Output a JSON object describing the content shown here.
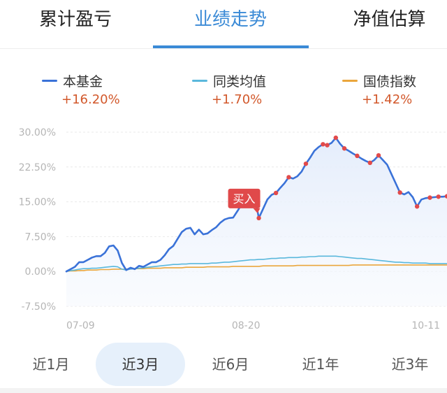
{
  "tabs": [
    {
      "label": "累计盈亏"
    },
    {
      "label": "业绩走势"
    },
    {
      "label": "净值估算"
    }
  ],
  "active_tab": 1,
  "legend": [
    {
      "name": "本基金",
      "value": "+16.20%",
      "color": "#3a72d8"
    },
    {
      "name": "同类均值",
      "value": "+1.70%",
      "color": "#5ab8dc"
    },
    {
      "name": "国债指数",
      "value": "+1.42%",
      "color": "#eaa63c"
    }
  ],
  "chart_data": {
    "type": "line",
    "y_ticks": [
      "30.00%",
      "22.50%",
      "15.00%",
      "7.50%",
      "0.00%",
      "-7.50%"
    ],
    "y_tick_values": [
      30,
      22.5,
      15,
      7.5,
      0,
      -7.5
    ],
    "ylim": [
      -7.5,
      30
    ],
    "x_tick_labels": [
      "07-09",
      "08-20",
      "10-11"
    ],
    "x_tick_positions": [
      0,
      42,
      84
    ],
    "x_range": [
      0,
      89
    ],
    "annotation": {
      "label": "买入",
      "at_index": 45
    },
    "marker_indices": [
      45,
      49,
      52,
      56,
      60,
      61,
      63,
      65,
      68,
      71,
      73,
      78,
      82,
      85,
      87,
      89
    ],
    "series": [
      {
        "name": "本基金",
        "color": "#3a72d8",
        "values": [
          0.0,
          0.5,
          1.0,
          2.0,
          2.0,
          2.5,
          3.0,
          3.3,
          3.3,
          4.0,
          5.4,
          5.6,
          4.5,
          1.8,
          0.3,
          0.8,
          0.5,
          1.2,
          1.0,
          1.5,
          2.0,
          2.0,
          2.5,
          3.5,
          4.8,
          5.5,
          7.0,
          8.5,
          9.2,
          9.4,
          8.0,
          9.0,
          8.0,
          8.2,
          8.9,
          9.5,
          10.5,
          11.2,
          11.5,
          11.6,
          13.0,
          14.5,
          15.8,
          16.5,
          16.3,
          11.5,
          13.5,
          15.5,
          16.5,
          16.9,
          18.0,
          19.0,
          20.3,
          20.0,
          20.5,
          21.5,
          23.2,
          24.5,
          26.0,
          26.8,
          27.4,
          27.2,
          27.7,
          28.8,
          27.5,
          26.5,
          26.0,
          25.4,
          24.9,
          24.3,
          23.8,
          23.4,
          24.0,
          25.0,
          24.0,
          23.0,
          21.0,
          19.0,
          17.0,
          16.6,
          17.1,
          16.0,
          14.0,
          15.5,
          15.8,
          15.9,
          16.0,
          16.1,
          16.1,
          16.2
        ],
        "colored_line": true
      },
      {
        "name": "同类均值",
        "color": "#5ab8dc",
        "values": [
          0.0,
          0.2,
          0.3,
          0.5,
          0.6,
          0.6,
          0.7,
          0.7,
          0.8,
          0.9,
          1.0,
          1.1,
          1.0,
          0.5,
          0.3,
          0.5,
          0.6,
          0.7,
          0.8,
          0.9,
          1.0,
          1.1,
          1.2,
          1.3,
          1.4,
          1.5,
          1.5,
          1.6,
          1.6,
          1.7,
          1.7,
          1.7,
          1.7,
          1.7,
          1.8,
          1.8,
          1.9,
          2.0,
          2.0,
          2.1,
          2.2,
          2.3,
          2.4,
          2.5,
          2.5,
          2.6,
          2.6,
          2.7,
          2.8,
          2.8,
          2.9,
          2.9,
          3.0,
          3.0,
          3.0,
          3.1,
          3.1,
          3.2,
          3.2,
          3.3,
          3.3,
          3.3,
          3.3,
          3.3,
          3.2,
          3.1,
          3.0,
          2.9,
          2.8,
          2.8,
          2.7,
          2.6,
          2.5,
          2.4,
          2.3,
          2.2,
          2.1,
          2.0,
          2.0,
          1.9,
          1.9,
          1.8,
          1.8,
          1.8,
          1.8,
          1.7,
          1.7,
          1.7,
          1.7,
          1.7
        ]
      },
      {
        "name": "国债指数",
        "color": "#eaa63c",
        "values": [
          0.0,
          0.1,
          0.1,
          0.2,
          0.2,
          0.3,
          0.3,
          0.3,
          0.4,
          0.4,
          0.4,
          0.5,
          0.5,
          0.5,
          0.5,
          0.6,
          0.6,
          0.6,
          0.6,
          0.7,
          0.7,
          0.7,
          0.7,
          0.8,
          0.8,
          0.8,
          0.8,
          0.8,
          0.9,
          0.9,
          0.9,
          0.9,
          0.9,
          1.0,
          1.0,
          1.0,
          1.0,
          1.0,
          1.0,
          1.1,
          1.1,
          1.1,
          1.1,
          1.1,
          1.1,
          1.1,
          1.2,
          1.2,
          1.2,
          1.2,
          1.2,
          1.2,
          1.2,
          1.2,
          1.3,
          1.3,
          1.3,
          1.3,
          1.3,
          1.3,
          1.3,
          1.3,
          1.3,
          1.3,
          1.3,
          1.3,
          1.3,
          1.4,
          1.4,
          1.4,
          1.4,
          1.4,
          1.4,
          1.4,
          1.4,
          1.4,
          1.4,
          1.4,
          1.4,
          1.4,
          1.4,
          1.4,
          1.4,
          1.4,
          1.4,
          1.4,
          1.4,
          1.4,
          1.4,
          1.4
        ]
      }
    ],
    "grid": true,
    "area_fill_color": "#eef3fc",
    "marker_color": "#e24a4a"
  },
  "ranges": [
    {
      "label": "近1月"
    },
    {
      "label": "近3月"
    },
    {
      "label": "近6月"
    },
    {
      "label": "近1年"
    },
    {
      "label": "近3年"
    }
  ],
  "active_range": 1
}
